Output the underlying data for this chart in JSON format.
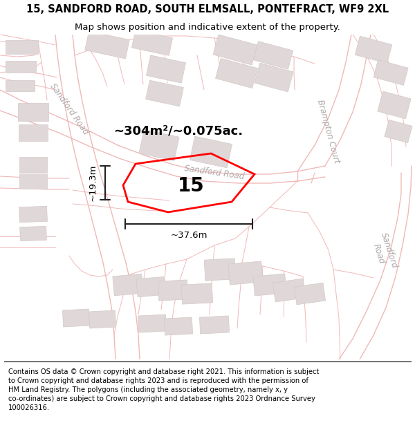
{
  "title": "15, SANDFORD ROAD, SOUTH ELMSALL, PONTEFRACT, WF9 2XL",
  "subtitle": "Map shows position and indicative extent of the property.",
  "footer": "Contains OS data © Crown copyright and database right 2021. This information is subject to Crown copyright and database rights 2023 and is reproduced with the permission of HM Land Registry. The polygons (including the associated geometry, namely x, y co-ordinates) are subject to Crown copyright and database rights 2023 Ordnance Survey 100026316.",
  "area_label": "~304m²/~0.075ac.",
  "width_label": "~37.6m",
  "height_label": "~19.3m",
  "number_label": "15",
  "road_label_sandford_upper": "Sandford Road",
  "road_label_sandford_lower": "Sandford Road",
  "road_label_brampton": "Brampton Court",
  "bg": "#ffffff",
  "map_bg": "#ffffff",
  "road_line_color": "#f0b8b8",
  "building_fill": "#e0d8d8",
  "building_edge": "#d4c8c8",
  "plot_edge": "#ff0000",
  "text_dark": "#111111",
  "text_road": "#b0a8a8",
  "title_fontsize": 10.5,
  "subtitle_fontsize": 9.5,
  "footer_fontsize": 7.2,
  "area_fontsize": 13,
  "dim_fontsize": 9.5,
  "number_fontsize": 20,
  "road_label_fontsize": 8.5
}
